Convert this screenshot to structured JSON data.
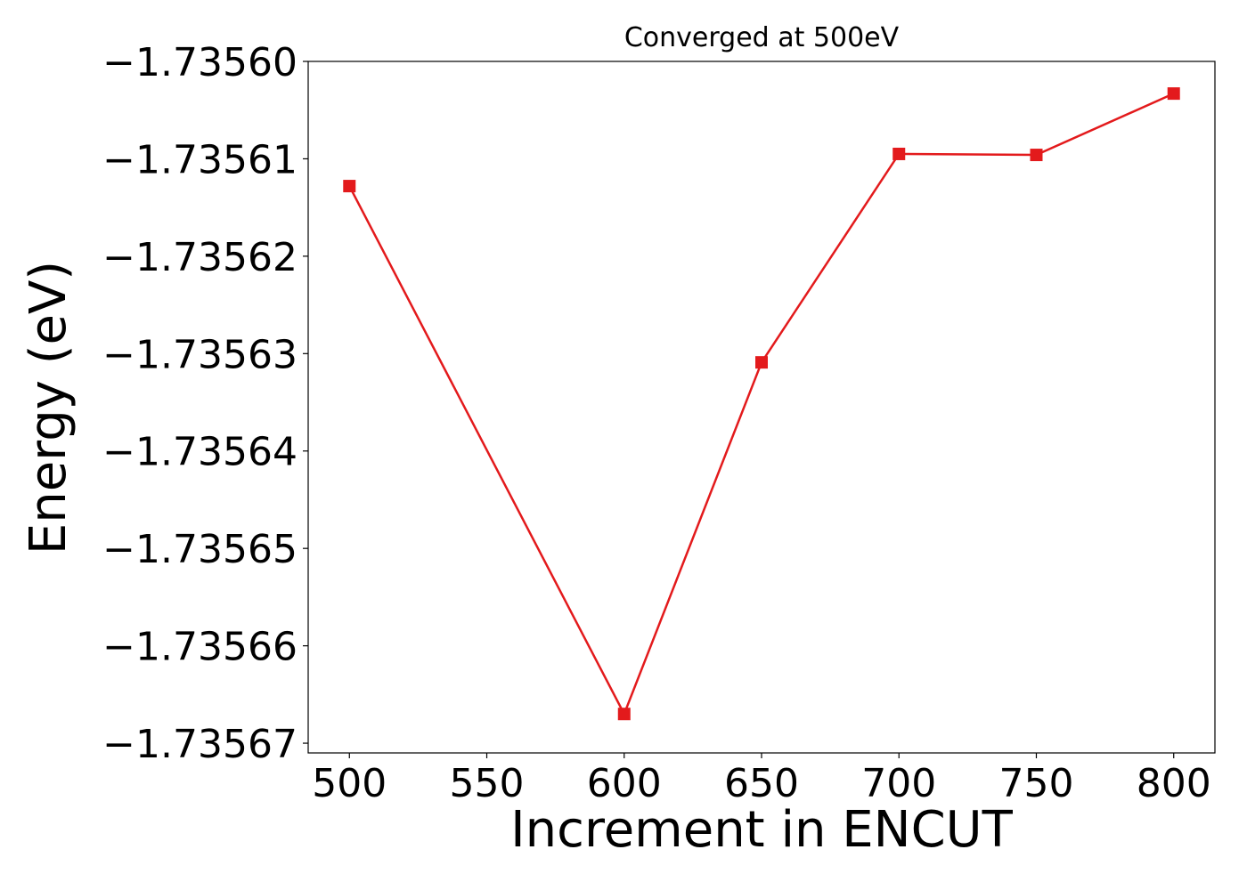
{
  "chart_data": {
    "type": "line",
    "title": "Converged at 500eV",
    "xlabel": "Increment in ENCUT",
    "ylabel": "Energy (eV)",
    "x": [
      500,
      600,
      650,
      700,
      750,
      800
    ],
    "series": [
      {
        "values": [
          -1.7356128,
          -1.735667,
          -1.7356309,
          -1.7356095,
          -1.7356096,
          -1.7356033
        ],
        "color": "#e31a1c",
        "marker": "square"
      }
    ],
    "xticks": [
      500,
      550,
      600,
      650,
      700,
      750,
      800
    ],
    "xtick_labels": [
      "500",
      "550",
      "600",
      "650",
      "700",
      "750",
      "800"
    ],
    "yticks": [
      -1.7356,
      -1.73561,
      -1.73562,
      -1.73563,
      -1.73564,
      -1.73565,
      -1.73566,
      -1.73567
    ],
    "ytick_labels": [
      "−1.73560",
      "−1.73561",
      "−1.73562",
      "−1.73563",
      "−1.73564",
      "−1.73565",
      "−1.73566",
      "−1.73567"
    ],
    "xlim": [
      485,
      815
    ],
    "ylim": [
      -1.735671,
      -1.7356
    ]
  }
}
